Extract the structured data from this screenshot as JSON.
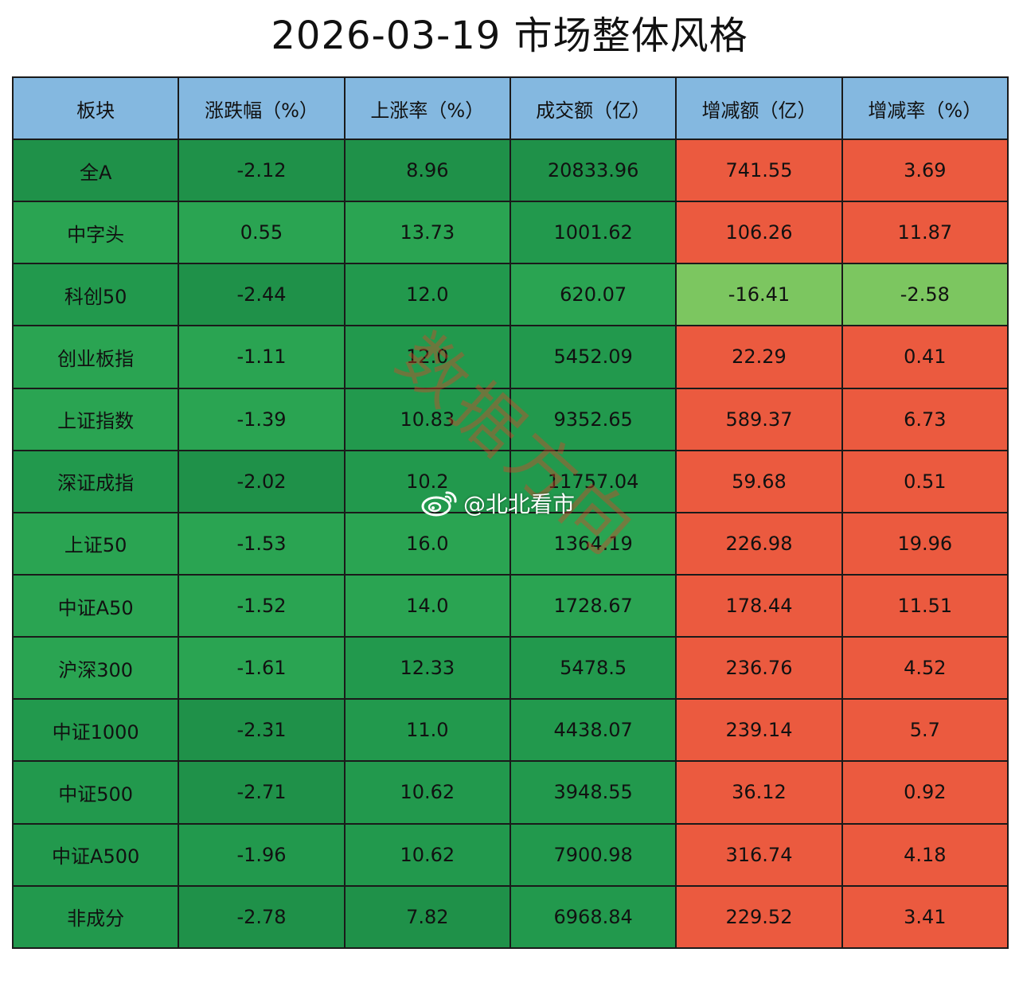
{
  "title": "2026-03-19 市场整体风格",
  "table": {
    "headers": [
      "板块",
      "涨跌幅（%）",
      "上涨率（%）",
      "成交额（亿）",
      "增减额（亿）",
      "增减率（%）"
    ],
    "rows": [
      {
        "name": "全A",
        "change_pct": "-2.12",
        "rise_rate": "8.96",
        "turnover": "20833.96",
        "delta": "741.55",
        "delta_pct": "3.69"
      },
      {
        "name": "中字头",
        "change_pct": "0.55",
        "rise_rate": "13.73",
        "turnover": "1001.62",
        "delta": "106.26",
        "delta_pct": "11.87"
      },
      {
        "name": "科创50",
        "change_pct": "-2.44",
        "rise_rate": "12.0",
        "turnover": "620.07",
        "delta": "-16.41",
        "delta_pct": "-2.58"
      },
      {
        "name": "创业板指",
        "change_pct": "-1.11",
        "rise_rate": "12.0",
        "turnover": "5452.09",
        "delta": "22.29",
        "delta_pct": "0.41"
      },
      {
        "name": "上证指数",
        "change_pct": "-1.39",
        "rise_rate": "10.83",
        "turnover": "9352.65",
        "delta": "589.37",
        "delta_pct": "6.73"
      },
      {
        "name": "深证成指",
        "change_pct": "-2.02",
        "rise_rate": "10.2",
        "turnover": "11757.04",
        "delta": "59.68",
        "delta_pct": "0.51"
      },
      {
        "name": "上证50",
        "change_pct": "-1.53",
        "rise_rate": "16.0",
        "turnover": "1364.19",
        "delta": "226.98",
        "delta_pct": "19.96"
      },
      {
        "name": "中证A50",
        "change_pct": "-1.52",
        "rise_rate": "14.0",
        "turnover": "1728.67",
        "delta": "178.44",
        "delta_pct": "11.51"
      },
      {
        "name": "沪深300",
        "change_pct": "-1.61",
        "rise_rate": "12.33",
        "turnover": "5478.5",
        "delta": "236.76",
        "delta_pct": "4.52"
      },
      {
        "name": "中证1000",
        "change_pct": "-2.31",
        "rise_rate": "11.0",
        "turnover": "4438.07",
        "delta": "239.14",
        "delta_pct": "5.7"
      },
      {
        "name": "中证500",
        "change_pct": "-2.71",
        "rise_rate": "10.62",
        "turnover": "3948.55",
        "delta": "36.12",
        "delta_pct": "0.92"
      },
      {
        "name": "中证A500",
        "change_pct": "-1.96",
        "rise_rate": "10.62",
        "turnover": "7900.98",
        "delta": "316.74",
        "delta_pct": "4.18"
      },
      {
        "name": "非成分",
        "change_pct": "-2.78",
        "rise_rate": "7.82",
        "turnover": "6968.84",
        "delta": "229.52",
        "delta_pct": "3.41"
      }
    ]
  },
  "watermark": "数据方向",
  "weibo_handle": "@北北看市",
  "colors": {
    "header_bg": "#84b8e0",
    "green_dark": "#1f9149",
    "green_mid": "#22994d",
    "green_light": "#2aa452",
    "green_pale": "#7cc660",
    "red": "#eb5a3f"
  }
}
